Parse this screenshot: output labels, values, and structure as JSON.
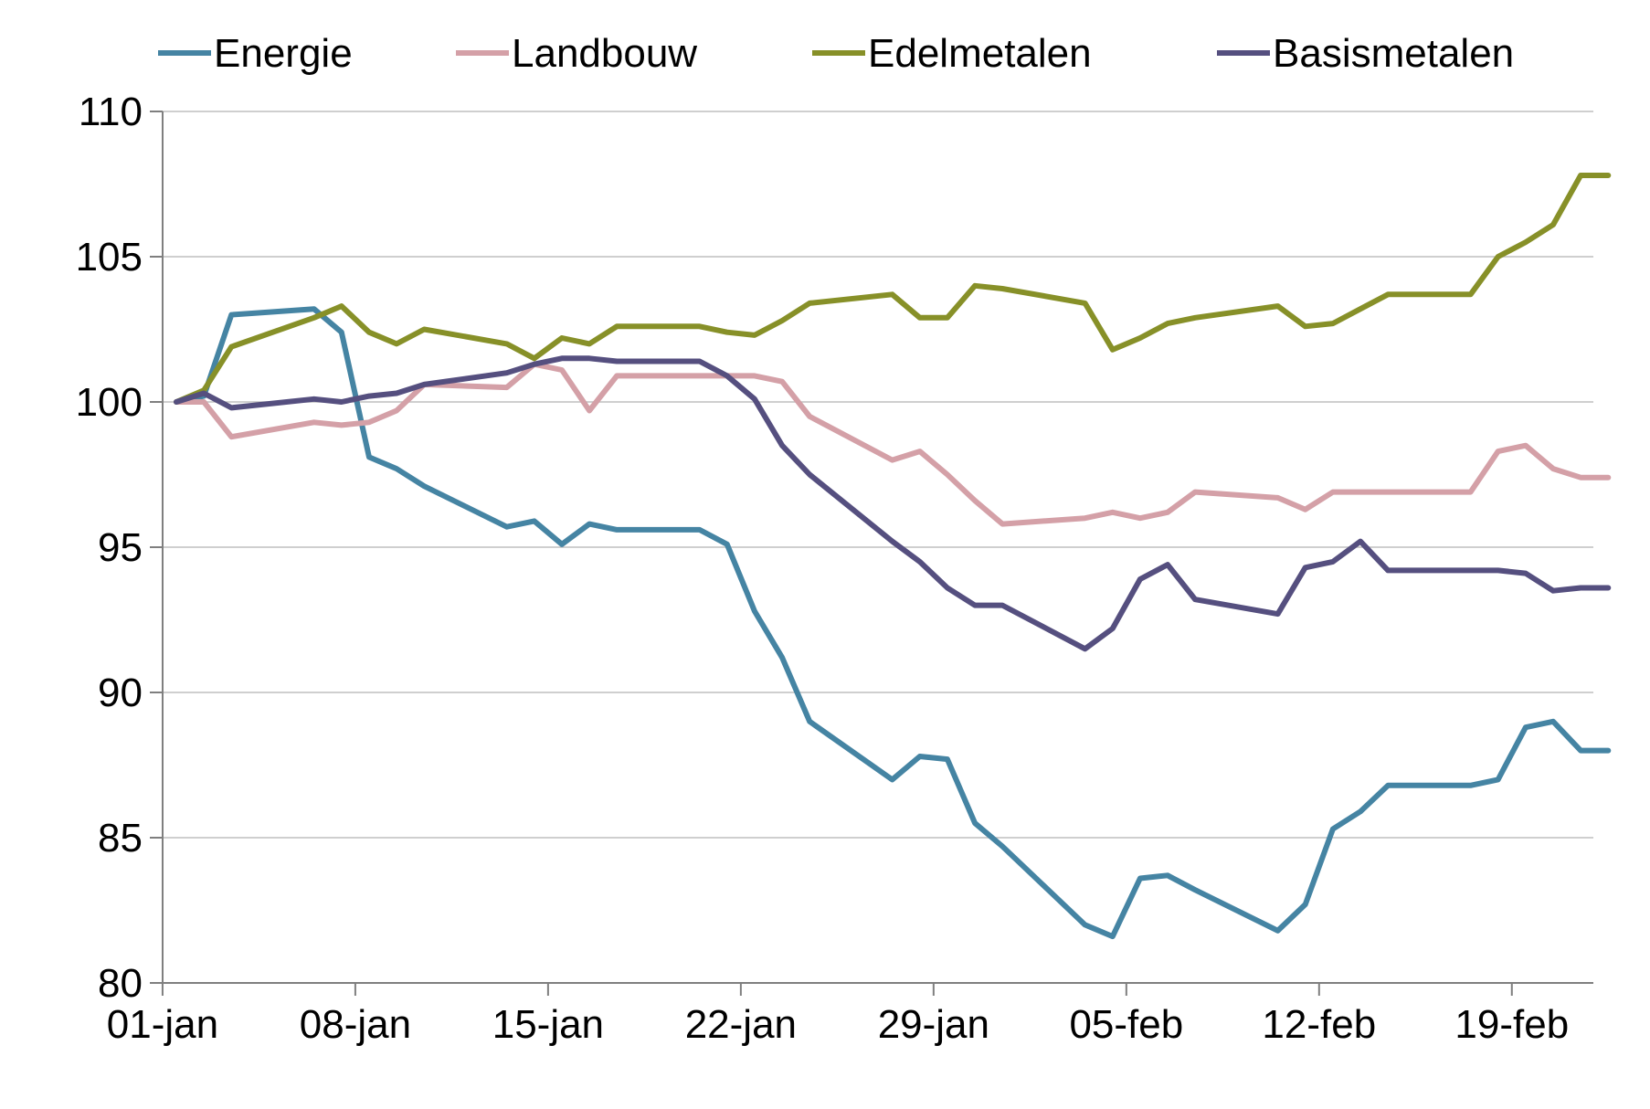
{
  "chart_data": {
    "type": "line",
    "title": "",
    "xlabel": "",
    "ylabel": "",
    "x_start": "2016-01-01",
    "x_end": "2016-02-22",
    "x_ticks": [
      {
        "date": "2016-01-01",
        "label": "01-jan"
      },
      {
        "date": "2016-01-08",
        "label": "08-jan"
      },
      {
        "date": "2016-01-15",
        "label": "15-jan"
      },
      {
        "date": "2016-01-22",
        "label": "22-jan"
      },
      {
        "date": "2016-01-29",
        "label": "29-jan"
      },
      {
        "date": "2016-02-05",
        "label": "05-feb"
      },
      {
        "date": "2016-02-12",
        "label": "12-feb"
      },
      {
        "date": "2016-02-19",
        "label": "19-feb"
      }
    ],
    "ylim": [
      80,
      110
    ],
    "y_ticks": [
      80,
      85,
      90,
      95,
      100,
      105,
      110
    ],
    "grid": "horizontal",
    "legend_position": "top",
    "x": [
      "2016-01-01",
      "2016-01-02",
      "2016-01-03",
      "2016-01-06",
      "2016-01-07",
      "2016-01-08",
      "2016-01-09",
      "2016-01-10",
      "2016-01-13",
      "2016-01-14",
      "2016-01-15",
      "2016-01-16",
      "2016-01-17",
      "2016-01-20",
      "2016-01-21",
      "2016-01-22",
      "2016-01-23",
      "2016-01-24",
      "2016-01-27",
      "2016-01-28",
      "2016-01-29",
      "2016-01-30",
      "2016-01-31",
      "2016-02-03",
      "2016-02-04",
      "2016-02-05",
      "2016-02-06",
      "2016-02-07",
      "2016-02-10",
      "2016-02-11",
      "2016-02-12",
      "2016-02-13",
      "2016-02-14",
      "2016-02-17",
      "2016-02-18",
      "2016-02-19",
      "2016-02-20",
      "2016-02-21",
      "2016-02-22"
    ],
    "series": [
      {
        "name": "Energie",
        "color": "#4584a3",
        "values": [
          100.0,
          100.2,
          103.0,
          103.2,
          102.4,
          98.1,
          97.7,
          97.1,
          95.7,
          95.9,
          95.1,
          95.8,
          95.6,
          95.6,
          95.1,
          92.8,
          91.2,
          89.0,
          87.0,
          87.8,
          87.7,
          85.5,
          84.7,
          82.0,
          81.6,
          83.6,
          83.7,
          83.2,
          81.8,
          82.7,
          85.3,
          85.9,
          86.8,
          86.8,
          87.0,
          88.8,
          89.0,
          88.0,
          88.0
        ]
      },
      {
        "name": "Landbouw",
        "color": "#d4a0a7",
        "values": [
          100.0,
          100.0,
          98.8,
          99.3,
          99.2,
          99.3,
          99.7,
          100.6,
          100.5,
          101.3,
          101.1,
          99.7,
          100.9,
          100.9,
          100.9,
          100.9,
          100.7,
          99.5,
          98.0,
          98.3,
          97.5,
          96.6,
          95.8,
          96.0,
          96.2,
          96.0,
          96.2,
          96.9,
          96.7,
          96.3,
          96.9,
          96.9,
          96.9,
          96.9,
          98.3,
          98.5,
          97.7,
          97.4,
          97.4
        ]
      },
      {
        "name": "Edelmetalen",
        "color": "#879028",
        "values": [
          100.0,
          100.4,
          101.9,
          102.9,
          103.3,
          102.4,
          102.0,
          102.5,
          102.0,
          101.5,
          102.2,
          102.0,
          102.6,
          102.6,
          102.4,
          102.3,
          102.8,
          103.4,
          103.7,
          102.9,
          102.9,
          104.0,
          103.9,
          103.4,
          101.8,
          102.2,
          102.7,
          102.9,
          103.3,
          102.6,
          102.7,
          103.2,
          103.7,
          103.7,
          105.0,
          105.5,
          106.1,
          107.8,
          107.8
        ]
      },
      {
        "name": "Basismetalen",
        "color": "#554f7f",
        "values": [
          100.0,
          100.3,
          99.8,
          100.1,
          100.0,
          100.2,
          100.3,
          100.6,
          101.0,
          101.3,
          101.5,
          101.5,
          101.4,
          101.4,
          100.9,
          100.1,
          98.5,
          97.5,
          95.2,
          94.5,
          93.6,
          93.0,
          93.0,
          91.5,
          92.2,
          93.9,
          94.4,
          93.2,
          92.7,
          94.3,
          94.5,
          95.2,
          94.2,
          94.2,
          94.2,
          94.1,
          93.5,
          93.6,
          93.6
        ]
      }
    ]
  }
}
